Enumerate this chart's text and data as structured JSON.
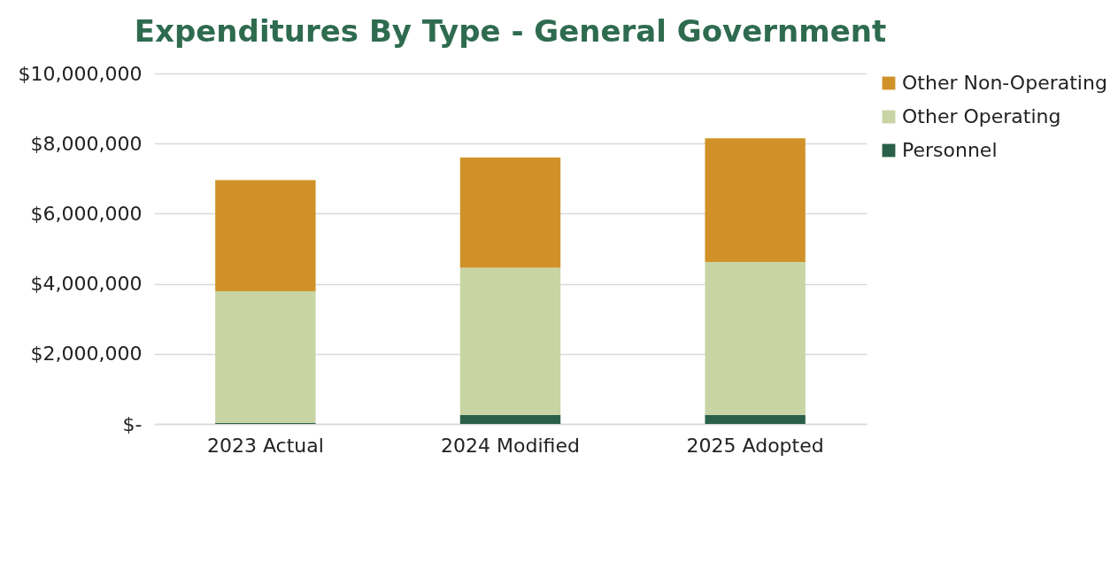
{
  "chart_data": {
    "type": "bar",
    "title": "Expenditures By Type - General Government",
    "stacked": true,
    "categories": [
      "2023 Actual",
      "2024 Modified",
      "2025 Adopted"
    ],
    "series": [
      {
        "name": "Personnel",
        "color": "#2a6049",
        "values": [
          30000,
          260000,
          260000
        ]
      },
      {
        "name": "Other Operating",
        "color": "#c8d4a4",
        "values": [
          3760000,
          4200000,
          4360000
        ]
      },
      {
        "name": "Other Non-Operating",
        "color": "#d09228",
        "values": [
          3170000,
          3140000,
          3530000
        ]
      }
    ],
    "ylim": [
      0,
      10000000
    ],
    "yticks": [
      {
        "value": 0,
        "label": "$-"
      },
      {
        "value": 2000000,
        "label": "$2,000,000"
      },
      {
        "value": 4000000,
        "label": "$4,000,000"
      },
      {
        "value": 6000000,
        "label": "$6,000,000"
      },
      {
        "value": 8000000,
        "label": "$8,000,000"
      },
      {
        "value": 10000000,
        "label": "$10,000,000"
      }
    ],
    "grid": "y",
    "legend": "right"
  }
}
